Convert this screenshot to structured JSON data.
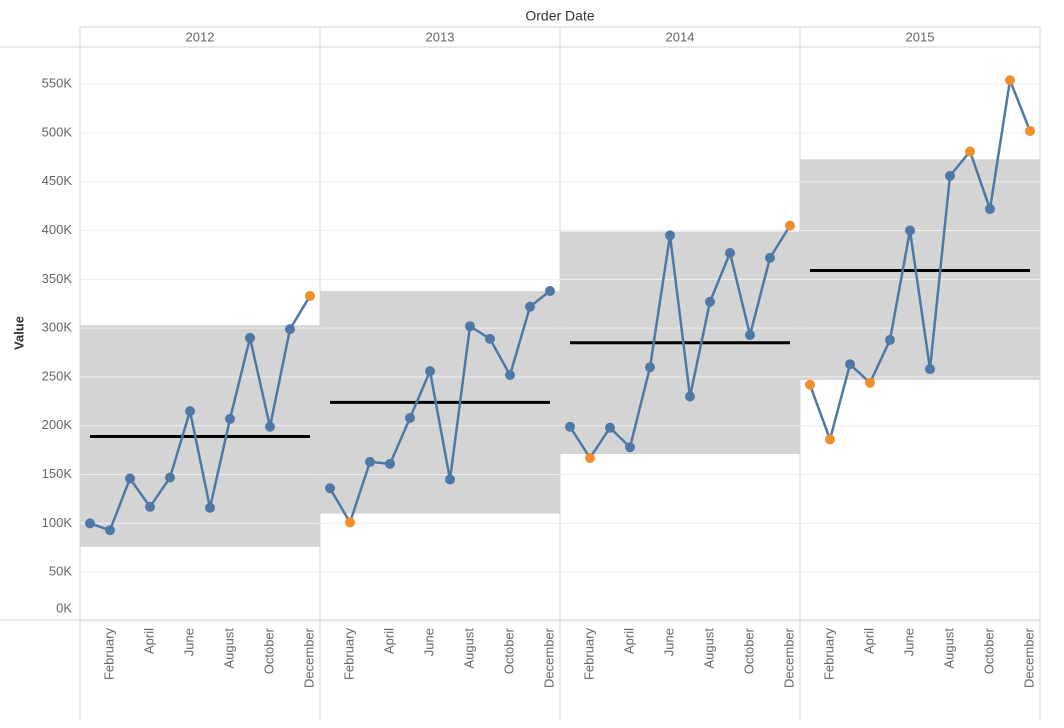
{
  "chart_data": {
    "type": "line",
    "title": "Order Date",
    "y_label": "Value",
    "categories": [
      null,
      "February",
      null,
      "April",
      null,
      "June",
      null,
      "August",
      null,
      "October",
      null,
      "December"
    ],
    "ylim": [
      0,
      588000
    ],
    "yticks": [
      {
        "value": 0,
        "label": "0K"
      },
      {
        "value": 50000,
        "label": "50K"
      },
      {
        "value": 100000,
        "label": "100K"
      },
      {
        "value": 150000,
        "label": "150K"
      },
      {
        "value": 200000,
        "label": "200K"
      },
      {
        "value": 250000,
        "label": "250K"
      },
      {
        "value": 300000,
        "label": "300K"
      },
      {
        "value": 350000,
        "label": "350K"
      },
      {
        "value": 400000,
        "label": "400K"
      },
      {
        "value": 450000,
        "label": "450K"
      },
      {
        "value": 500000,
        "label": "500K"
      },
      {
        "value": 550000,
        "label": "550K"
      }
    ],
    "grid": true,
    "color": "#4e79a7",
    "outlier_color": "#f28e2b",
    "band_color": "#d4d4d4",
    "average_color": "#000000",
    "panels": [
      {
        "name": "2012",
        "values": [
          100000,
          93000,
          146000,
          117000,
          147000,
          215000,
          116000,
          207000,
          290000,
          199000,
          299000,
          333000
        ],
        "band": [
          76000,
          303000
        ],
        "average": 189000
      },
      {
        "name": "2013",
        "values": [
          136000,
          101000,
          163000,
          161000,
          208000,
          256000,
          145000,
          302000,
          289000,
          252000,
          322000,
          338000
        ],
        "band": [
          110000,
          338000
        ],
        "average": 224000
      },
      {
        "name": "2014",
        "values": [
          199000,
          167000,
          198000,
          178000,
          260000,
          395000,
          230000,
          327000,
          377000,
          293000,
          372000,
          405000
        ],
        "band": [
          171000,
          399000
        ],
        "average": 285000
      },
      {
        "name": "2015",
        "values": [
          242000,
          186000,
          263000,
          244000,
          288000,
          400000,
          258000,
          456000,
          481000,
          422000,
          554000,
          502000
        ],
        "band": [
          247000,
          473000
        ],
        "average": 359000
      }
    ]
  }
}
